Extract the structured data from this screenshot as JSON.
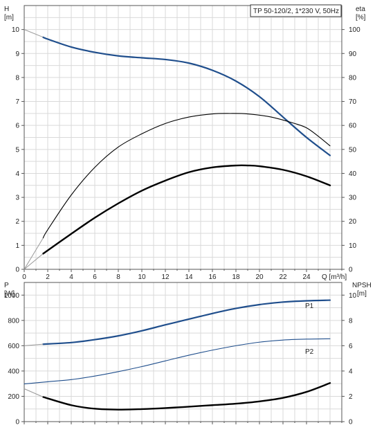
{
  "chart_data": {
    "type": "line",
    "title": "TP 50-120/2, 1*230 V, 50Hz",
    "panels": [
      {
        "id": "top",
        "x_axis": {
          "label": "Q [m³/h]",
          "range": [
            0,
            27
          ],
          "ticks": [
            0,
            2,
            4,
            6,
            8,
            10,
            12,
            14,
            16,
            18,
            20,
            22,
            24
          ]
        },
        "y_left": {
          "name": "H",
          "unit": "[m]",
          "range": [
            0,
            11
          ],
          "ticks": [
            0,
            1,
            2,
            3,
            4,
            5,
            6,
            7,
            8,
            9,
            10
          ]
        },
        "y_right": {
          "name": "eta",
          "unit": "[%]",
          "range": [
            0,
            110
          ],
          "ticks": [
            0,
            10,
            20,
            30,
            40,
            50,
            60,
            70,
            80,
            90,
            100
          ]
        },
        "series": [
          {
            "name": "",
            "axis": "left",
            "color": "#1f4e8c",
            "width": 2.2,
            "points": [
              [
                1.6,
                9.68
              ],
              [
                2,
                9.6
              ],
              [
                4,
                9.27
              ],
              [
                6,
                9.05
              ],
              [
                8,
                8.9
              ],
              [
                10,
                8.82
              ],
              [
                12,
                8.75
              ],
              [
                14,
                8.6
              ],
              [
                16,
                8.3
              ],
              [
                18,
                7.85
              ],
              [
                20,
                7.2
              ],
              [
                22,
                6.35
              ],
              [
                24,
                5.5
              ],
              [
                26,
                4.75
              ]
            ]
          },
          {
            "name": "",
            "axis": "right",
            "color": "#000000",
            "width": 1.1,
            "points": [
              [
                1.6,
                13
              ],
              [
                2,
                16.5
              ],
              [
                4,
                31
              ],
              [
                6,
                42.5
              ],
              [
                8,
                51
              ],
              [
                10,
                56.5
              ],
              [
                12,
                60.8
              ],
              [
                14,
                63.5
              ],
              [
                16,
                64.8
              ],
              [
                17.5,
                65
              ],
              [
                19,
                64.8
              ],
              [
                21,
                63.5
              ],
              [
                23,
                60.8
              ],
              [
                24,
                59
              ],
              [
                25,
                55.5
              ],
              [
                26,
                51.5
              ]
            ]
          },
          {
            "name": "",
            "axis": "right",
            "color": "#000000",
            "width": 2.4,
            "points": [
              [
                1.6,
                6.5
              ],
              [
                4,
                14.8
              ],
              [
                6,
                21.5
              ],
              [
                8,
                27.5
              ],
              [
                10,
                32.8
              ],
              [
                12,
                37
              ],
              [
                14,
                40.5
              ],
              [
                16,
                42.5
              ],
              [
                18,
                43.3
              ],
              [
                19,
                43.3
              ],
              [
                20,
                43
              ],
              [
                22,
                41.5
              ],
              [
                24,
                38.8
              ],
              [
                26,
                35
              ]
            ]
          }
        ]
      },
      {
        "id": "bottom",
        "x_axis": {
          "range": [
            0,
            27
          ]
        },
        "y_left": {
          "name": "P",
          "unit": "[W]",
          "range": [
            0,
            1100
          ],
          "ticks": [
            0,
            200,
            400,
            600,
            800,
            1000
          ]
        },
        "y_right": {
          "name": "NPSH",
          "unit": "[m]",
          "range": [
            0,
            11
          ],
          "ticks": [
            0,
            2,
            4,
            6,
            8,
            10
          ]
        },
        "series": [
          {
            "name": "P1",
            "axis": "left",
            "color": "#1f4e8c",
            "width": 2.2,
            "points": [
              [
                1.6,
                612
              ],
              [
                4,
                625
              ],
              [
                6,
                648
              ],
              [
                8,
                678
              ],
              [
                10,
                718
              ],
              [
                12,
                765
              ],
              [
                14,
                810
              ],
              [
                16,
                855
              ],
              [
                18,
                895
              ],
              [
                20,
                925
              ],
              [
                22,
                945
              ],
              [
                24,
                955
              ],
              [
                26,
                960
              ]
            ]
          },
          {
            "name": "P2",
            "axis": "left",
            "color": "#1f4e8c",
            "width": 1.1,
            "points": [
              [
                0,
                298
              ],
              [
                2,
                315
              ],
              [
                4,
                332
              ],
              [
                6,
                360
              ],
              [
                8,
                395
              ],
              [
                10,
                435
              ],
              [
                12,
                480
              ],
              [
                14,
                525
              ],
              [
                16,
                565
              ],
              [
                18,
                600
              ],
              [
                20,
                628
              ],
              [
                22,
                645
              ],
              [
                24,
                652
              ],
              [
                26,
                655
              ]
            ]
          },
          {
            "name": "",
            "axis": "right",
            "color": "#000000",
            "width": 2.4,
            "points": [
              [
                1.6,
                1.95
              ],
              [
                4,
                1.3
              ],
              [
                6,
                1.02
              ],
              [
                8,
                0.95
              ],
              [
                10,
                0.99
              ],
              [
                12,
                1.07
              ],
              [
                14,
                1.18
              ],
              [
                16,
                1.3
              ],
              [
                18,
                1.42
              ],
              [
                20,
                1.6
              ],
              [
                22,
                1.88
              ],
              [
                24,
                2.35
              ],
              [
                26,
                3.05
              ]
            ]
          }
        ]
      }
    ],
    "guide_lines": [
      {
        "panel": "top",
        "axis": "left",
        "points": [
          [
            0,
            10
          ],
          [
            1.6,
            9.68
          ]
        ]
      },
      {
        "panel": "top",
        "axis": "right",
        "points": [
          [
            0,
            0
          ],
          [
            1.6,
            13
          ]
        ]
      },
      {
        "panel": "top",
        "axis": "right",
        "points": [
          [
            0,
            0
          ],
          [
            1.6,
            6.5
          ]
        ]
      },
      {
        "panel": "bottom",
        "axis": "left",
        "points": [
          [
            0,
            600
          ],
          [
            1.6,
            612
          ]
        ]
      },
      {
        "panel": "bottom",
        "axis": "right",
        "points": [
          [
            0,
            2.6
          ],
          [
            1.6,
            1.95
          ]
        ]
      }
    ],
    "grid": true
  }
}
